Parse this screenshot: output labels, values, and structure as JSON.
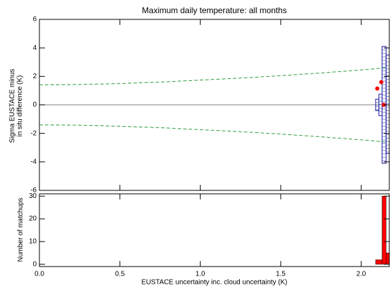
{
  "chart_data": [
    {
      "type": "line",
      "title": "Maximum daily temperature: all months",
      "ylabel": [
        "Sigma EUSTACE minus",
        "in situ difference (K)"
      ],
      "xlim": [
        0,
        2.175
      ],
      "ylim": [
        -6,
        6
      ],
      "yticks": [
        -6,
        -4,
        -2,
        0,
        2,
        4,
        6
      ],
      "hline": 0,
      "x": [
        0,
        0.25,
        0.5,
        0.75,
        1.0,
        1.25,
        1.5,
        1.75,
        2.0,
        2.15
      ],
      "series": [
        {
          "color": "#2e9e3e",
          "values": [
            1.4,
            1.43,
            1.5,
            1.6,
            1.74,
            1.88,
            2.05,
            2.24,
            2.45,
            2.6
          ]
        },
        {
          "color": "#2e9e3e",
          "values": [
            -1.4,
            -1.43,
            -1.5,
            -1.6,
            -1.74,
            -1.88,
            -2.05,
            -2.24,
            -2.45,
            -2.6
          ]
        }
      ],
      "points": {
        "color": "#ff0000",
        "x": [
          2.125,
          2.1,
          2.14
        ],
        "values": [
          1.6,
          1.15,
          0.0
        ]
      },
      "boxes": {
        "color": "#1a1aa0",
        "items": [
          {
            "x": [
              2.09,
              2.11
            ],
            "low": -0.4,
            "high": 0.4
          },
          {
            "x": [
              2.11,
              2.13
            ],
            "low": -0.75,
            "high": 0.75
          },
          {
            "x": [
              2.13,
              2.155
            ],
            "low": -4.1,
            "high": 4.1
          },
          {
            "x": [
              2.155,
              2.175
            ],
            "low": -3.4,
            "high": 3.5
          }
        ]
      }
    },
    {
      "type": "histogram",
      "xlabel": "EUSTACE uncertainty inc. cloud uncertainty (K)",
      "ylabel": "Number of matchups",
      "xlim": [
        0,
        2.175
      ],
      "ylim": [
        -1,
        31
      ],
      "xticks": [
        {
          "value": 0,
          "label": "0.0"
        },
        {
          "value": 0.5,
          "label": "0.5"
        },
        {
          "value": 1,
          "label": "1.0"
        },
        {
          "value": 1.5,
          "label": "1.5"
        },
        {
          "value": 2,
          "label": "2.0"
        }
      ],
      "yticks": [
        0,
        10,
        20,
        30
      ],
      "color": "#ff0000",
      "bins": [
        2.09,
        2.13,
        2.155,
        2.175
      ],
      "values": [
        2,
        30,
        5
      ]
    }
  ]
}
